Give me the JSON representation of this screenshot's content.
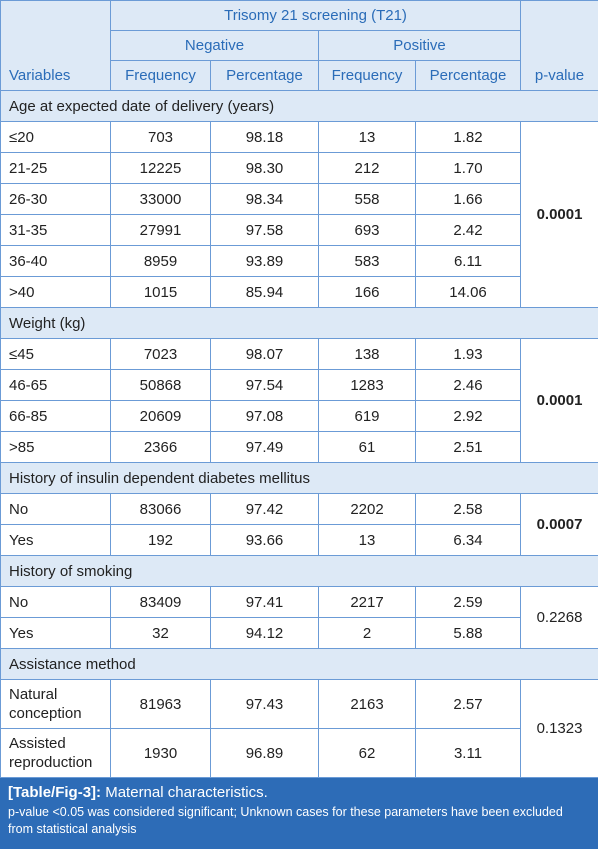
{
  "table": {
    "group_header": "Trisomy 21 screening (T21)",
    "subgroups": [
      "Negative",
      "Positive"
    ],
    "columns": [
      "Variables",
      "Frequency",
      "Percentage",
      "Frequency",
      "Percentage",
      "p-value"
    ],
    "sections": [
      {
        "title": "Age at expected date of delivery (years)",
        "p_value": "0.0001",
        "p_value_bold": true,
        "rows": [
          [
            "≤20",
            "703",
            "98.18",
            "13",
            "1.82"
          ],
          [
            "21-25",
            "12225",
            "98.30",
            "212",
            "1.70"
          ],
          [
            "26-30",
            "33000",
            "98.34",
            "558",
            "1.66"
          ],
          [
            "31-35",
            "27991",
            "97.58",
            "693",
            "2.42"
          ],
          [
            "36-40",
            "8959",
            "93.89",
            "583",
            "6.11"
          ],
          [
            ">40",
            "1015",
            "85.94",
            "166",
            "14.06"
          ]
        ]
      },
      {
        "title": "Weight (kg)",
        "p_value": "0.0001",
        "p_value_bold": true,
        "rows": [
          [
            "≤45",
            "7023",
            "98.07",
            "138",
            "1.93"
          ],
          [
            "46-65",
            "50868",
            "97.54",
            "1283",
            "2.46"
          ],
          [
            "66-85",
            "20609",
            "97.08",
            "619",
            "2.92"
          ],
          [
            ">85",
            "2366",
            "97.49",
            "61",
            "2.51"
          ]
        ]
      },
      {
        "title": "History of insulin dependent diabetes mellitus",
        "p_value": "0.0007",
        "p_value_bold": true,
        "rows": [
          [
            "No",
            "83066",
            "97.42",
            "2202",
            "2.58"
          ],
          [
            "Yes",
            "192",
            "93.66",
            "13",
            "6.34"
          ]
        ]
      },
      {
        "title": "History of smoking",
        "p_value": "0.2268",
        "p_value_bold": false,
        "rows": [
          [
            "No",
            "83409",
            "97.41",
            "2217",
            "2.59"
          ],
          [
            "Yes",
            "32",
            "94.12",
            "2",
            "5.88"
          ]
        ]
      },
      {
        "title": "Assistance method",
        "p_value": "0.1323",
        "p_value_bold": false,
        "rows": [
          [
            "Natural conception",
            "81963",
            "97.43",
            "2163",
            "2.57"
          ],
          [
            "Assisted reproduction",
            "1930",
            "96.89",
            "62",
            "3.11"
          ]
        ]
      }
    ]
  },
  "caption": {
    "label": "[Table/Fig-3]:",
    "title": "Maternal characteristics.",
    "note": "p-value <0.05 was considered significant; Unknown cases for these parameters have been excluded from statistical analysis"
  }
}
